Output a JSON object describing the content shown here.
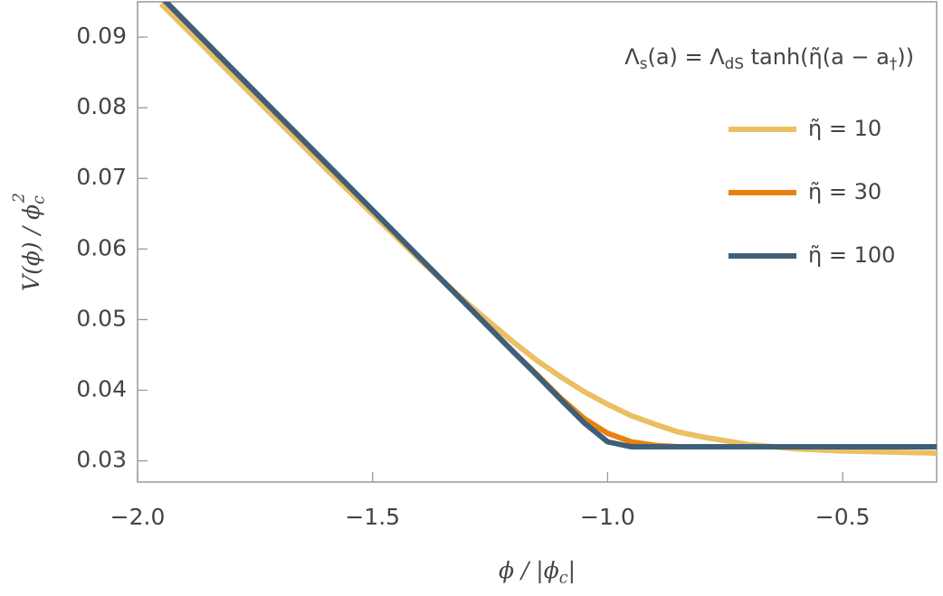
{
  "chart_data": {
    "type": "line",
    "x_label": [
      "ϕ / |ϕ",
      "c",
      "|"
    ],
    "y_label": [
      "V(ϕ) / ϕ",
      "c"
    ],
    "y_label_sup": "2",
    "legend_title": [
      "Λ",
      "s",
      "(a) = Λ",
      "dS",
      " tanh(η̃(a − a",
      "†",
      "))"
    ],
    "legend_position": "upper right",
    "x": [
      -1.95,
      -1.8,
      -1.6,
      -1.4,
      -1.3,
      -1.2,
      -1.15,
      -1.1,
      -1.05,
      -1.0,
      -0.95,
      -0.9,
      -0.85,
      -0.8,
      -0.7,
      -0.6,
      -0.5,
      -0.3
    ],
    "series": [
      {
        "name": "η̃ = 10",
        "color": "#ebbf63",
        "values": [
          0.0947,
          0.0847,
          0.0714,
          0.0585,
          0.0524,
          0.0468,
          0.0442,
          0.0419,
          0.0398,
          0.038,
          0.0364,
          0.0352,
          0.0341,
          0.0334,
          0.0323,
          0.0317,
          0.0314,
          0.0311
        ]
      },
      {
        "name": "η̃ = 30",
        "color": "#e8810f",
        "values": [
          0.0957,
          0.0856,
          0.0722,
          0.0588,
          0.0521,
          0.0454,
          0.0422,
          0.0389,
          0.036,
          0.0339,
          0.0327,
          0.0322,
          0.032,
          0.032,
          0.032,
          0.032,
          0.032,
          0.032
        ]
      },
      {
        "name": "η̃ = 100",
        "color": "#3e5f7a",
        "values": [
          0.0957,
          0.0856,
          0.0722,
          0.0588,
          0.0521,
          0.0454,
          0.0421,
          0.0387,
          0.0354,
          0.0327,
          0.032,
          0.032,
          0.032,
          0.032,
          0.032,
          0.032,
          0.032,
          0.032
        ]
      }
    ],
    "xlim": [
      -2.0,
      -0.3
    ],
    "ylim": [
      0.027,
      0.095
    ],
    "xticks": [
      {
        "value": -2.0,
        "label": "−2.0"
      },
      {
        "value": -1.5,
        "label": "−1.5"
      },
      {
        "value": -1.0,
        "label": "−1.0"
      },
      {
        "value": -0.5,
        "label": "−0.5"
      }
    ],
    "yticks": [
      0.03,
      0.04,
      0.05,
      0.06,
      0.07,
      0.08,
      0.09
    ],
    "grid": false
  }
}
